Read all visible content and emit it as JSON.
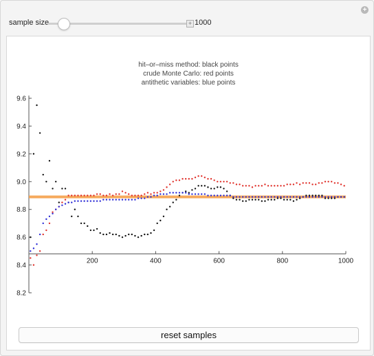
{
  "controls": {
    "sample_size_label": "sample size",
    "sample_size_value": "1000"
  },
  "legend": {
    "line1": "hit–or–miss method: black points",
    "line2": "crude Monte Carlo: red points",
    "line3": "antithetic variables: blue points"
  },
  "reset_label": "reset samples",
  "colors": {
    "hit_or_miss": "#111111",
    "crude": "#e0302a",
    "antithetic": "#2b2bd6",
    "reference": "#f5a04a"
  },
  "chart_data": {
    "type": "scatter",
    "x_ticks": [
      "200",
      "400",
      "600",
      "800",
      "1000"
    ],
    "y_ticks": [
      "8.2",
      "8.4",
      "8.6",
      "8.8",
      "9.0",
      "9.2",
      "9.4",
      "9.6"
    ],
    "xlim": [
      0,
      1000
    ],
    "ylim": [
      8.2,
      9.6
    ],
    "x_axis_crossing_y": 8.48,
    "reference_value": 8.89,
    "series": [
      {
        "name": "hit-or-miss method",
        "color": "black",
        "x": [
          5,
          15,
          25,
          35,
          45,
          55,
          65,
          75,
          85,
          95,
          105,
          115,
          125,
          135,
          145,
          155,
          165,
          175,
          185,
          195,
          205,
          215,
          225,
          235,
          245,
          255,
          265,
          275,
          285,
          295,
          305,
          315,
          325,
          335,
          345,
          355,
          365,
          375,
          385,
          395,
          405,
          415,
          425,
          435,
          445,
          455,
          465,
          475,
          485,
          495,
          505,
          515,
          525,
          535,
          545,
          555,
          565,
          575,
          585,
          595,
          605,
          615,
          625,
          635,
          645,
          655,
          665,
          675,
          685,
          695,
          705,
          715,
          725,
          735,
          745,
          755,
          765,
          775,
          785,
          795,
          805,
          815,
          825,
          835,
          845,
          855,
          865,
          875,
          885,
          895,
          905,
          915,
          925,
          935,
          945,
          955,
          965,
          975,
          985,
          995
        ],
        "y": [
          8.6,
          9.2,
          9.55,
          9.35,
          9.05,
          9.0,
          9.15,
          8.95,
          9.0,
          8.85,
          8.95,
          8.95,
          8.85,
          8.75,
          8.8,
          8.75,
          8.7,
          8.7,
          8.68,
          8.65,
          8.65,
          8.66,
          8.63,
          8.62,
          8.62,
          8.63,
          8.62,
          8.62,
          8.61,
          8.6,
          8.61,
          8.62,
          8.62,
          8.61,
          8.6,
          8.61,
          8.62,
          8.62,
          8.63,
          8.65,
          8.7,
          8.72,
          8.75,
          8.8,
          8.82,
          8.85,
          8.87,
          8.9,
          8.92,
          8.93,
          8.92,
          8.94,
          8.95,
          8.97,
          8.97,
          8.97,
          8.96,
          8.95,
          8.95,
          8.96,
          8.96,
          8.95,
          8.93,
          8.9,
          8.88,
          8.87,
          8.87,
          8.86,
          8.86,
          8.87,
          8.87,
          8.87,
          8.87,
          8.86,
          8.86,
          8.87,
          8.87,
          8.87,
          8.88,
          8.88,
          8.87,
          8.87,
          8.87,
          8.86,
          8.87,
          8.88,
          8.89,
          8.9,
          8.9,
          8.9,
          8.9,
          8.9,
          8.9,
          8.88,
          8.88,
          8.88,
          8.88,
          8.89,
          8.89,
          8.89
        ]
      },
      {
        "name": "crude Monte Carlo",
        "color": "red",
        "x": [
          5,
          15,
          25,
          35,
          45,
          55,
          65,
          75,
          85,
          95,
          105,
          115,
          125,
          135,
          145,
          155,
          165,
          175,
          185,
          195,
          205,
          215,
          225,
          235,
          245,
          255,
          265,
          275,
          285,
          295,
          305,
          315,
          325,
          335,
          345,
          355,
          365,
          375,
          385,
          395,
          405,
          415,
          425,
          435,
          445,
          455,
          465,
          475,
          485,
          495,
          505,
          515,
          525,
          535,
          545,
          555,
          565,
          575,
          585,
          595,
          605,
          615,
          625,
          635,
          645,
          655,
          665,
          675,
          685,
          695,
          705,
          715,
          725,
          735,
          745,
          755,
          765,
          775,
          785,
          795,
          805,
          815,
          825,
          835,
          845,
          855,
          865,
          875,
          885,
          895,
          905,
          915,
          925,
          935,
          945,
          955,
          965,
          975,
          985,
          995
        ],
        "y": [
          8.45,
          8.4,
          8.47,
          8.5,
          8.62,
          8.65,
          8.7,
          8.78,
          8.8,
          8.82,
          8.85,
          8.87,
          8.9,
          8.9,
          8.9,
          8.9,
          8.9,
          8.9,
          8.9,
          8.9,
          8.9,
          8.91,
          8.91,
          8.9,
          8.9,
          8.91,
          8.9,
          8.91,
          8.91,
          8.93,
          8.92,
          8.91,
          8.9,
          8.9,
          8.9,
          8.9,
          8.91,
          8.92,
          8.91,
          8.92,
          8.92,
          8.93,
          8.94,
          8.96,
          8.98,
          9.0,
          9.01,
          9.01,
          9.02,
          9.02,
          9.02,
          9.02,
          9.03,
          9.04,
          9.04,
          9.03,
          9.02,
          9.02,
          9.01,
          9.0,
          9.0,
          9.0,
          9.0,
          8.99,
          8.99,
          8.98,
          8.98,
          8.97,
          8.97,
          8.97,
          8.96,
          8.97,
          8.97,
          8.97,
          8.98,
          8.97,
          8.97,
          8.97,
          8.97,
          8.97,
          8.97,
          8.98,
          8.98,
          8.98,
          8.99,
          8.98,
          8.99,
          8.99,
          8.99,
          8.98,
          8.98,
          8.99,
          8.99,
          9.0,
          9.0,
          9.0,
          8.99,
          8.99,
          8.98,
          8.97
        ]
      },
      {
        "name": "antithetic variables",
        "color": "blue",
        "x": [
          5,
          15,
          25,
          35,
          45,
          55,
          65,
          75,
          85,
          95,
          105,
          115,
          125,
          135,
          145,
          155,
          165,
          175,
          185,
          195,
          205,
          215,
          225,
          235,
          245,
          255,
          265,
          275,
          285,
          295,
          305,
          315,
          325,
          335,
          345,
          355,
          365,
          375,
          385,
          395,
          405,
          415,
          425,
          435,
          445,
          455,
          465,
          475,
          485,
          495,
          505,
          515,
          525,
          535,
          545,
          555,
          565,
          575,
          585,
          595,
          605,
          615,
          625,
          635,
          645,
          655,
          665,
          675,
          685,
          695,
          705,
          715,
          725,
          735,
          745,
          755,
          765,
          775,
          785,
          795,
          805,
          815,
          825,
          835,
          845,
          855,
          865,
          875,
          885,
          895,
          905,
          915,
          925,
          935,
          945,
          955,
          965,
          975,
          985,
          995
        ],
        "y": [
          8.5,
          8.52,
          8.55,
          8.62,
          8.7,
          8.73,
          8.75,
          8.77,
          8.8,
          8.82,
          8.83,
          8.84,
          8.85,
          8.85,
          8.86,
          8.86,
          8.86,
          8.86,
          8.86,
          8.86,
          8.86,
          8.86,
          8.86,
          8.87,
          8.87,
          8.87,
          8.87,
          8.87,
          8.87,
          8.87,
          8.87,
          8.87,
          8.87,
          8.87,
          8.88,
          8.88,
          8.88,
          8.89,
          8.89,
          8.9,
          8.9,
          8.91,
          8.91,
          8.91,
          8.92,
          8.92,
          8.92,
          8.92,
          8.92,
          8.92,
          8.91,
          8.91,
          8.91,
          8.91,
          8.91,
          8.91,
          8.9,
          8.9,
          8.9,
          8.9,
          8.9,
          8.9,
          8.9,
          8.9,
          8.89,
          8.89,
          8.89,
          8.89,
          8.89,
          8.89,
          8.89,
          8.89,
          8.89,
          8.89,
          8.89,
          8.89,
          8.89,
          8.89,
          8.89,
          8.89,
          8.89,
          8.89,
          8.89,
          8.89,
          8.89,
          8.89,
          8.89,
          8.89,
          8.89,
          8.89,
          8.89,
          8.89,
          8.89,
          8.89,
          8.89,
          8.89,
          8.89,
          8.89,
          8.89,
          8.89
        ]
      }
    ]
  }
}
